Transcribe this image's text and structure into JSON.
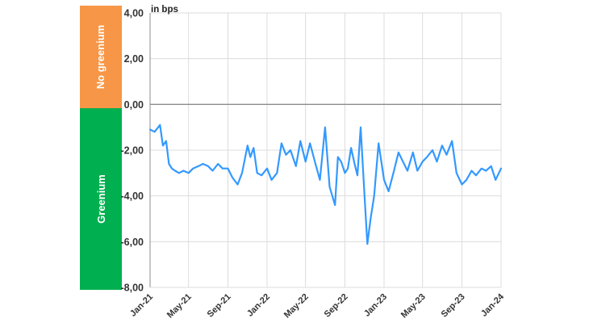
{
  "colors": {
    "no_greenium_band": "#f79646",
    "greenium_band": "#00b050",
    "series_line": "#3399ff",
    "grid": "#dcdcdc",
    "zero_axis": "#8c8c8c"
  },
  "bands": {
    "no_greenium": "No greenium",
    "greenium": "Greenium"
  },
  "chart_data": {
    "type": "line",
    "unit_label": "in bps",
    "ylim": [
      -8,
      4
    ],
    "yticks": [
      "4,00",
      "2,00",
      "0,00",
      "-2,00",
      "-4,00",
      "-6,00",
      "-8,00"
    ],
    "ytick_values": [
      4,
      2,
      0,
      -2,
      -4,
      -6,
      -8
    ],
    "xlim": [
      "2021-01-01",
      "2024-01-01"
    ],
    "xticks": [
      "Jan-21",
      "May-21",
      "Sep-21",
      "Jan-22",
      "May-22",
      "Sep-22",
      "Jan-23",
      "May-23",
      "Sep-23",
      "Jan-24"
    ],
    "grid": true,
    "series": [
      {
        "x": [
          "2021-01-01",
          "2021-01-15",
          "2021-02-01",
          "2021-02-10",
          "2021-02-20",
          "2021-03-01",
          "2021-03-10",
          "2021-03-20",
          "2021-04-01",
          "2021-04-15",
          "2021-05-01",
          "2021-05-15",
          "2021-06-01",
          "2021-06-15",
          "2021-07-01",
          "2021-07-15",
          "2021-08-01",
          "2021-08-15",
          "2021-09-01",
          "2021-09-15",
          "2021-10-01",
          "2021-10-15",
          "2021-11-01",
          "2021-11-10",
          "2021-11-20",
          "2021-12-01",
          "2021-12-15",
          "2022-01-01",
          "2022-01-15",
          "2022-02-01",
          "2022-02-15",
          "2022-03-01",
          "2022-03-15",
          "2022-04-01",
          "2022-04-15",
          "2022-05-01",
          "2022-05-15",
          "2022-06-01",
          "2022-06-15",
          "2022-07-01",
          "2022-07-15",
          "2022-08-01",
          "2022-08-10",
          "2022-08-20",
          "2022-09-01",
          "2022-09-10",
          "2022-09-20",
          "2022-10-01",
          "2022-10-10",
          "2022-10-20",
          "2022-11-01",
          "2022-11-10",
          "2022-11-20",
          "2022-12-01",
          "2022-12-15",
          "2023-01-01",
          "2023-01-15",
          "2023-02-01",
          "2023-02-15",
          "2023-03-01",
          "2023-03-15",
          "2023-04-01",
          "2023-04-15",
          "2023-05-01",
          "2023-05-15",
          "2023-06-01",
          "2023-06-15",
          "2023-07-01",
          "2023-07-15",
          "2023-08-01",
          "2023-08-15",
          "2023-09-01",
          "2023-09-15",
          "2023-10-01",
          "2023-10-15",
          "2023-11-01",
          "2023-11-15",
          "2023-12-01",
          "2023-12-15",
          "2024-01-01"
        ],
        "y": [
          -1.1,
          -1.2,
          -0.9,
          -1.8,
          -1.6,
          -2.6,
          -2.8,
          -2.9,
          -3.0,
          -2.9,
          -3.0,
          -2.8,
          -2.7,
          -2.6,
          -2.7,
          -2.9,
          -2.6,
          -2.8,
          -2.8,
          -3.2,
          -3.5,
          -3.0,
          -1.8,
          -2.3,
          -1.9,
          -3.0,
          -3.1,
          -2.8,
          -3.3,
          -3.0,
          -1.7,
          -2.2,
          -2.0,
          -2.7,
          -1.6,
          -2.5,
          -1.7,
          -2.6,
          -3.3,
          -1.0,
          -3.6,
          -4.4,
          -2.3,
          -2.5,
          -3.0,
          -2.8,
          -1.9,
          -2.6,
          -3.1,
          -1.0,
          -4.0,
          -6.1,
          -5.0,
          -4.0,
          -1.7,
          -3.3,
          -3.8,
          -2.9,
          -2.1,
          -2.5,
          -2.9,
          -2.1,
          -2.9,
          -2.5,
          -2.3,
          -2.0,
          -2.5,
          -1.8,
          -2.2,
          -1.6,
          -3.0,
          -3.5,
          -3.3,
          -2.9,
          -3.1,
          -2.8,
          -2.9,
          -2.7,
          -3.3,
          -2.8
        ]
      }
    ]
  }
}
